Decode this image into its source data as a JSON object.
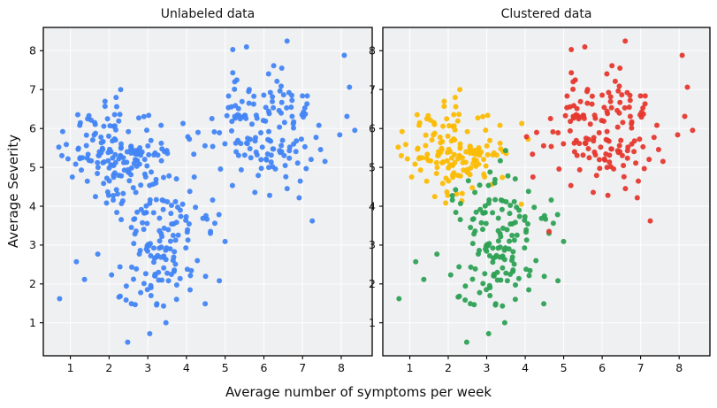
{
  "figure": {
    "xlabel": "Average number of symptoms per week",
    "ylabel": "Average Severity",
    "background": "#ffffff",
    "plot_bg": "#eff0f2",
    "grid_color": "#ffffff",
    "spine_color": "#000000",
    "tick_label_color": "#111111"
  },
  "chart_data": [
    {
      "type": "scatter",
      "title": "Unlabeled data",
      "xlabel": "Average number of symptoms per week",
      "ylabel": "Average Severity",
      "xlim": [
        0.3,
        8.8
      ],
      "ylim": [
        0.15,
        8.6
      ],
      "xticks": [
        1,
        2,
        3,
        4,
        5,
        6,
        7,
        8
      ],
      "yticks": [
        1,
        2,
        3,
        4,
        5,
        6,
        7,
        8
      ],
      "grid": true,
      "legend": "none",
      "series": [
        {
          "name": "unlabeled",
          "color": "#4285F4",
          "points": "union-of-clusters"
        }
      ]
    },
    {
      "type": "scatter",
      "title": "Clustered data",
      "xlabel": "Average number of symptoms per week",
      "ylabel": "",
      "xlim": [
        0.3,
        8.8
      ],
      "ylim": [
        0.15,
        8.6
      ],
      "xticks": [
        1,
        2,
        3,
        4,
        5,
        6,
        7,
        8
      ],
      "yticks": [
        1,
        2,
        3,
        4,
        5,
        6,
        7,
        8
      ],
      "grid": true,
      "legend": "none",
      "series": [
        {
          "name": "cluster-yellow",
          "color": "#FBBC05",
          "center": [
            2.2,
            5.45
          ],
          "std": [
            0.62,
            0.6
          ],
          "count": 145,
          "seed": 7,
          "extra_points": [
            [
              0.7,
              5.52
            ],
            [
              0.78,
              5.3
            ],
            [
              3.9,
              4.05
            ],
            [
              2.3,
              7.0
            ],
            [
              1.05,
              4.75
            ]
          ]
        },
        {
          "name": "cluster-green",
          "color": "#2EA155",
          "center": [
            3.15,
            3.0
          ],
          "std": [
            0.72,
            0.82
          ],
          "count": 150,
          "seed": 13,
          "extra_points": [
            [
              0.72,
              1.62
            ],
            [
              2.48,
              0.5
            ],
            [
              3.05,
              0.72
            ],
            [
              4.85,
              2.08
            ],
            [
              3.55,
              4.78
            ]
          ]
        },
        {
          "name": "cluster-red",
          "color": "#E5382E",
          "center": [
            6.05,
            6.0
          ],
          "std": [
            0.82,
            0.78
          ],
          "count": 150,
          "seed": 21,
          "extra_points": [
            [
              8.35,
              5.95
            ],
            [
              4.62,
              3.35
            ],
            [
              7.25,
              3.62
            ],
            [
              6.6,
              8.25
            ],
            [
              5.55,
              8.1
            ],
            [
              4.2,
              4.75
            ]
          ]
        }
      ]
    }
  ]
}
